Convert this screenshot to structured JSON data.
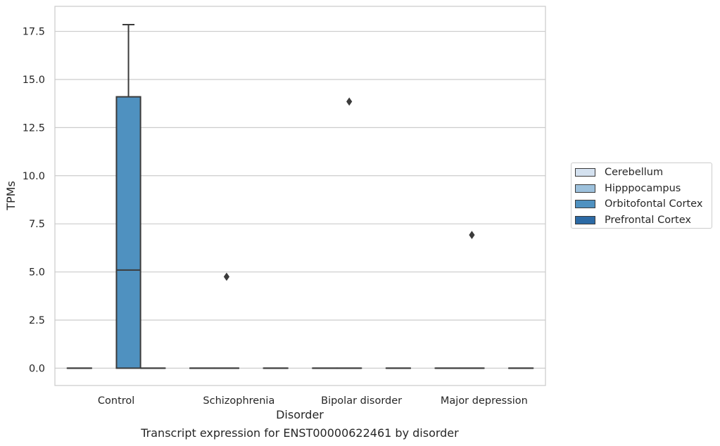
{
  "chart_data": {
    "type": "box",
    "xlabel": "Disorder",
    "ylabel": "TPMs",
    "caption": "Transcript expression for ENST00000622461 by disorder",
    "categories": [
      "Control",
      "Schizophrenia",
      "Bipolar disorder",
      "Major depression"
    ],
    "hue_levels": [
      "Cerebellum",
      "Hipppocampus",
      "Orbitofontal Cortex",
      "Prefrontal Cortex"
    ],
    "colors": {
      "Cerebellum": "#d4e1ef",
      "Hipppocampus": "#9dc1dc",
      "Orbitofontal Cortex": "#4f91c0",
      "Prefrontal Cortex": "#2c6aa5"
    },
    "ylim": [
      -0.9,
      18.8
    ],
    "yticks": [
      0.0,
      2.5,
      5.0,
      7.5,
      10.0,
      12.5,
      15.0,
      17.5
    ],
    "ytick_labels": [
      "0.0",
      "2.5",
      "5.0",
      "7.5",
      "10.0",
      "12.5",
      "15.0",
      "17.5"
    ],
    "grid": true,
    "legend_position": "right, outside plot",
    "boxes": [
      {
        "category": "Control",
        "group": "Cerebellum",
        "min": 0,
        "q1": 0,
        "median": 0,
        "q3": 0,
        "max": 0,
        "outliers": []
      },
      {
        "category": "Control",
        "group": "Orbitofontal Cortex",
        "min": 0,
        "q1": 0,
        "median": 5.1,
        "q3": 14.1,
        "max": 17.85,
        "outliers": []
      },
      {
        "category": "Control",
        "group": "Prefrontal Cortex",
        "min": 0,
        "q1": 0,
        "median": 0,
        "q3": 0,
        "max": 0,
        "outliers": []
      },
      {
        "category": "Schizophrenia",
        "group": "Cerebellum",
        "min": 0,
        "q1": 0,
        "median": 0,
        "q3": 0,
        "max": 0,
        "outliers": []
      },
      {
        "category": "Schizophrenia",
        "group": "Hipppocampus",
        "min": 0,
        "q1": 0,
        "median": 0,
        "q3": 0,
        "max": 0,
        "outliers": [
          4.75
        ]
      },
      {
        "category": "Schizophrenia",
        "group": "Prefrontal Cortex",
        "min": 0,
        "q1": 0,
        "median": 0,
        "q3": 0,
        "max": 0,
        "outliers": []
      },
      {
        "category": "Bipolar disorder",
        "group": "Cerebellum",
        "min": 0,
        "q1": 0,
        "median": 0,
        "q3": 0,
        "max": 0,
        "outliers": []
      },
      {
        "category": "Bipolar disorder",
        "group": "Hipppocampus",
        "min": 0,
        "q1": 0,
        "median": 0,
        "q3": 0,
        "max": 0,
        "outliers": [
          13.85
        ]
      },
      {
        "category": "Bipolar disorder",
        "group": "Prefrontal Cortex",
        "min": 0,
        "q1": 0,
        "median": 0,
        "q3": 0,
        "max": 0,
        "outliers": []
      },
      {
        "category": "Major depression",
        "group": "Cerebellum",
        "min": 0,
        "q1": 0,
        "median": 0,
        "q3": 0,
        "max": 0,
        "outliers": []
      },
      {
        "category": "Major depression",
        "group": "Hipppocampus",
        "min": 0,
        "q1": 0,
        "median": 0,
        "q3": 0,
        "max": 0,
        "outliers": [
          6.92
        ]
      },
      {
        "category": "Major depression",
        "group": "Prefrontal Cortex",
        "min": 0,
        "q1": 0,
        "median": 0,
        "q3": 0,
        "max": 0,
        "outliers": []
      }
    ]
  }
}
